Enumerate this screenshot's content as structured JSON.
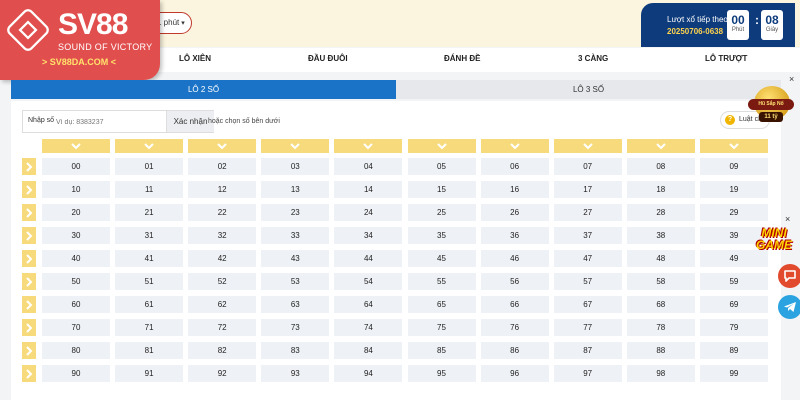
{
  "logo": {
    "brand": "SV88",
    "slogan": "SOUND OF VICTORY",
    "domain": "> SV88DA.COM <"
  },
  "header": {
    "duration_select": "1 phút",
    "countdown": {
      "label": "Lượt xổ tiếp theo",
      "draw_id": "20250706-0638",
      "minutes": "00",
      "minutes_unit": "Phút",
      "seconds": "08",
      "seconds_unit": "Giây"
    }
  },
  "nav": {
    "items": [
      "LÔ XIÊN",
      "ĐẦU ĐUÔI",
      "ĐÁNH ĐỀ",
      "3 CÀNG",
      "LÔ TRƯỢT"
    ]
  },
  "tabs": {
    "active": "LÔ 2 SỐ",
    "inactive": "LÔ 3 SỐ"
  },
  "number_input": {
    "label": "Nhập số",
    "placeholder": "Ví dụ: 8383237",
    "confirm_label": "Xác nhận",
    "hint_prefix": "hoặc",
    "hint_text": "chọn số bên dưới"
  },
  "rules_button": {
    "label": "Luật ch",
    "icon_glyph": "?"
  },
  "grid": {
    "column_count": 10,
    "rows": [
      [
        "00",
        "01",
        "02",
        "03",
        "04",
        "05",
        "06",
        "07",
        "08",
        "09"
      ],
      [
        "10",
        "11",
        "12",
        "13",
        "14",
        "15",
        "16",
        "17",
        "18",
        "19"
      ],
      [
        "20",
        "21",
        "22",
        "23",
        "24",
        "25",
        "26",
        "27",
        "28",
        "29"
      ],
      [
        "30",
        "31",
        "32",
        "33",
        "34",
        "35",
        "36",
        "37",
        "38",
        "39"
      ],
      [
        "40",
        "41",
        "42",
        "43",
        "44",
        "45",
        "46",
        "47",
        "48",
        "49"
      ],
      [
        "50",
        "51",
        "52",
        "53",
        "54",
        "55",
        "56",
        "57",
        "58",
        "59"
      ],
      [
        "60",
        "61",
        "62",
        "63",
        "64",
        "65",
        "66",
        "67",
        "68",
        "69"
      ],
      [
        "70",
        "71",
        "72",
        "73",
        "74",
        "75",
        "76",
        "77",
        "78",
        "79"
      ],
      [
        "80",
        "81",
        "82",
        "83",
        "84",
        "85",
        "86",
        "87",
        "88",
        "89"
      ],
      [
        "90",
        "91",
        "92",
        "93",
        "94",
        "95",
        "96",
        "97",
        "98",
        "99"
      ]
    ]
  },
  "widgets": {
    "promo_label": "Hũ Sắp Nổ",
    "promo_amount": "11 tỷ",
    "minigame_line1": "MINI",
    "minigame_line2": "GAME",
    "close_glyph": "×"
  },
  "colors": {
    "accent_blue": "#1a73c7",
    "header_navy": "#0d3b7c",
    "logo_red": "#e14e4e",
    "highlight_yellow": "#f6da7c"
  }
}
